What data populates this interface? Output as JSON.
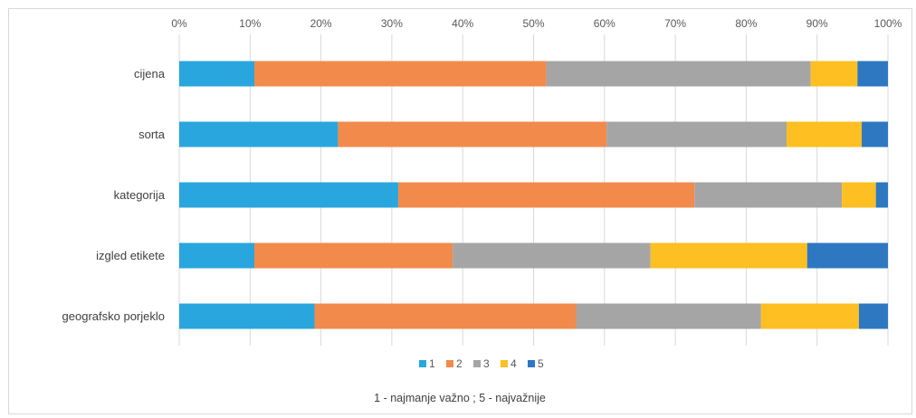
{
  "chart_data": {
    "type": "bar",
    "orientation": "horizontal",
    "stacked": "100%",
    "categories": [
      "cijena",
      "sorta",
      "kategorija",
      "izgled etikete",
      "geografsko porjeklo"
    ],
    "series": [
      {
        "name": "1",
        "color": "#29a6de",
        "values": [
          10.6,
          22.4,
          30.9,
          10.6,
          19.1
        ]
      },
      {
        "name": "2",
        "color": "#f28a4b",
        "values": [
          41.2,
          37.9,
          41.8,
          28.0,
          36.9
        ]
      },
      {
        "name": "3",
        "color": "#a5a5a5",
        "values": [
          37.3,
          25.4,
          20.8,
          27.9,
          26.1
        ]
      },
      {
        "name": "4",
        "color": "#fdbf21",
        "values": [
          6.6,
          10.6,
          4.8,
          22.1,
          13.8
        ]
      },
      {
        "name": "5",
        "color": "#2e78c2",
        "values": [
          4.3,
          3.7,
          1.7,
          11.4,
          4.1
        ]
      }
    ],
    "xlim": [
      0,
      100
    ],
    "x_ticks": [
      "0%",
      "10%",
      "20%",
      "30%",
      "40%",
      "50%",
      "60%",
      "70%",
      "80%",
      "90%",
      "100%"
    ],
    "x_axis_position": "top",
    "grid": true,
    "legend_position": "bottom",
    "note": "1 - najmanje važno ; 5 - najvažnije"
  }
}
